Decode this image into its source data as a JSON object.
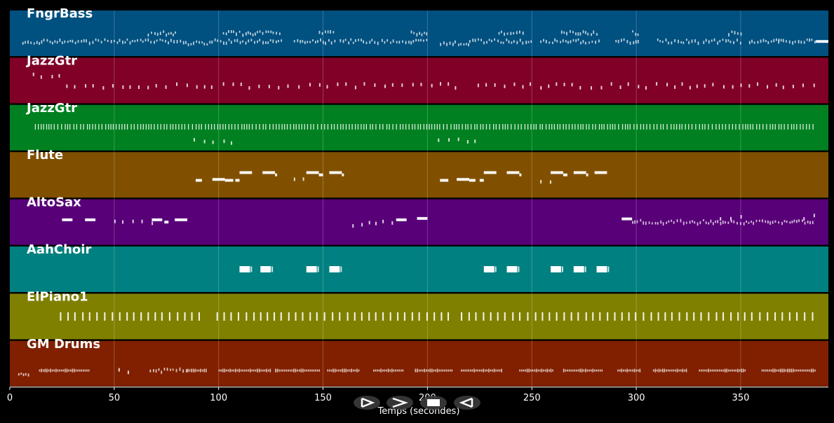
{
  "chart_data": {
    "type": "piano-roll",
    "xlabel": "Temps (secondes)",
    "xlim": [
      0,
      392
    ],
    "xticks": [
      0,
      50,
      100,
      150,
      200,
      250,
      300,
      350
    ],
    "grid": true,
    "tracks": [
      {
        "name": "FngrBass",
        "color": "#005080",
        "notes": [
          {
            "start": 6,
            "end": 16,
            "pitch": 0.28,
            "style": "dense"
          },
          {
            "start": 16,
            "end": 84,
            "pitch": 0.32,
            "style": "dense"
          },
          {
            "start": 66,
            "end": 80,
            "pitch": 0.5,
            "style": "dense"
          },
          {
            "start": 84,
            "end": 97,
            "pitch": 0.28,
            "style": "dense"
          },
          {
            "start": 98,
            "end": 130,
            "pitch": 0.32,
            "style": "dense"
          },
          {
            "start": 102,
            "end": 130,
            "pitch": 0.5,
            "style": "dense"
          },
          {
            "start": 136,
            "end": 156,
            "pitch": 0.32,
            "style": "dense"
          },
          {
            "start": 148,
            "end": 156,
            "pitch": 0.5,
            "style": "dense"
          },
          {
            "start": 158,
            "end": 176,
            "pitch": 0.32,
            "style": "dense"
          },
          {
            "start": 178,
            "end": 200,
            "pitch": 0.32,
            "style": "dense"
          },
          {
            "start": 192,
            "end": 200,
            "pitch": 0.5,
            "style": "dense"
          },
          {
            "start": 206,
            "end": 220,
            "pitch": 0.28,
            "style": "dense"
          },
          {
            "start": 220,
            "end": 250,
            "pitch": 0.32,
            "style": "dense"
          },
          {
            "start": 234,
            "end": 246,
            "pitch": 0.5,
            "style": "dense"
          },
          {
            "start": 254,
            "end": 282,
            "pitch": 0.32,
            "style": "dense"
          },
          {
            "start": 264,
            "end": 282,
            "pitch": 0.5,
            "style": "dense"
          },
          {
            "start": 290,
            "end": 302,
            "pitch": 0.32,
            "style": "dense"
          },
          {
            "start": 298,
            "end": 302,
            "pitch": 0.5,
            "style": "dense"
          },
          {
            "start": 310,
            "end": 330,
            "pitch": 0.32,
            "style": "dense"
          },
          {
            "start": 332,
            "end": 350,
            "pitch": 0.32,
            "style": "dense"
          },
          {
            "start": 344,
            "end": 350,
            "pitch": 0.5,
            "style": "dense"
          },
          {
            "start": 354,
            "end": 368,
            "pitch": 0.32,
            "style": "dense"
          },
          {
            "start": 368,
            "end": 386,
            "pitch": 0.32,
            "style": "dense"
          },
          {
            "start": 386,
            "end": 392,
            "pitch": 0.32,
            "style": "solid"
          }
        ]
      },
      {
        "name": "JazzGtr",
        "color": "#800028",
        "notes": [
          {
            "start": 11,
            "end": 27,
            "pitch": 0.6,
            "style": "sparse"
          },
          {
            "start": 27,
            "end": 100,
            "pitch": 0.38,
            "style": "sparse"
          },
          {
            "start": 102,
            "end": 216,
            "pitch": 0.38,
            "style": "sparse"
          },
          {
            "start": 224,
            "end": 386,
            "pitch": 0.38,
            "style": "sparse"
          }
        ]
      },
      {
        "name": "JazzGtr",
        "color": "#008020",
        "notes": [
          {
            "start": 12,
            "end": 385,
            "pitch": 0.52,
            "style": "comb"
          },
          {
            "start": 88,
            "end": 106,
            "pitch": 0.2,
            "style": "sparse"
          },
          {
            "start": 205,
            "end": 224,
            "pitch": 0.2,
            "style": "sparse"
          }
        ]
      },
      {
        "name": "Flute",
        "color": "#805000",
        "notes": [
          {
            "start": 89,
            "end": 92,
            "pitch": 0.38,
            "style": "solid"
          },
          {
            "start": 97,
            "end": 103,
            "pitch": 0.4,
            "style": "solid"
          },
          {
            "start": 103,
            "end": 107,
            "pitch": 0.38,
            "style": "solid"
          },
          {
            "start": 108,
            "end": 110,
            "pitch": 0.38,
            "style": "solid"
          },
          {
            "start": 110,
            "end": 116,
            "pitch": 0.55,
            "style": "solid"
          },
          {
            "start": 121,
            "end": 127,
            "pitch": 0.55,
            "style": "solid"
          },
          {
            "start": 127,
            "end": 128,
            "pitch": 0.5,
            "style": "solid"
          },
          {
            "start": 136,
            "end": 142,
            "pitch": 0.38,
            "style": "sparse"
          },
          {
            "start": 142,
            "end": 148,
            "pitch": 0.55,
            "style": "solid"
          },
          {
            "start": 148,
            "end": 150,
            "pitch": 0.5,
            "style": "solid"
          },
          {
            "start": 153,
            "end": 159,
            "pitch": 0.55,
            "style": "solid"
          },
          {
            "start": 159,
            "end": 160,
            "pitch": 0.5,
            "style": "solid"
          },
          {
            "start": 206,
            "end": 210,
            "pitch": 0.38,
            "style": "solid"
          },
          {
            "start": 214,
            "end": 220,
            "pitch": 0.4,
            "style": "solid"
          },
          {
            "start": 220,
            "end": 223,
            "pitch": 0.38,
            "style": "solid"
          },
          {
            "start": 225,
            "end": 227,
            "pitch": 0.38,
            "style": "solid"
          },
          {
            "start": 227,
            "end": 233,
            "pitch": 0.55,
            "style": "solid"
          },
          {
            "start": 238,
            "end": 244,
            "pitch": 0.55,
            "style": "solid"
          },
          {
            "start": 244,
            "end": 245,
            "pitch": 0.5,
            "style": "solid"
          },
          {
            "start": 254,
            "end": 259,
            "pitch": 0.38,
            "style": "sparse"
          },
          {
            "start": 259,
            "end": 265,
            "pitch": 0.55,
            "style": "solid"
          },
          {
            "start": 265,
            "end": 267,
            "pitch": 0.5,
            "style": "solid"
          },
          {
            "start": 270,
            "end": 276,
            "pitch": 0.55,
            "style": "solid"
          },
          {
            "start": 276,
            "end": 277,
            "pitch": 0.5,
            "style": "solid"
          },
          {
            "start": 280,
            "end": 286,
            "pitch": 0.55,
            "style": "solid"
          }
        ]
      },
      {
        "name": "AltoSax",
        "color": "#580078",
        "notes": [
          {
            "start": 25,
            "end": 30,
            "pitch": 0.55,
            "style": "solid"
          },
          {
            "start": 36,
            "end": 41,
            "pitch": 0.55,
            "style": "solid"
          },
          {
            "start": 50,
            "end": 60,
            "pitch": 0.5,
            "style": "sparse"
          },
          {
            "start": 63,
            "end": 68,
            "pitch": 0.5,
            "style": "sparse"
          },
          {
            "start": 68,
            "end": 73,
            "pitch": 0.55,
            "style": "solid"
          },
          {
            "start": 74,
            "end": 76,
            "pitch": 0.5,
            "style": "solid"
          },
          {
            "start": 79,
            "end": 84,
            "pitch": 0.55,
            "style": "solid"
          },
          {
            "start": 84,
            "end": 85,
            "pitch": 0.55,
            "style": "solid"
          },
          {
            "start": 164,
            "end": 172,
            "pitch": 0.45,
            "style": "sparse"
          },
          {
            "start": 175,
            "end": 185,
            "pitch": 0.5,
            "style": "sparse"
          },
          {
            "start": 185,
            "end": 190,
            "pitch": 0.55,
            "style": "solid"
          },
          {
            "start": 195,
            "end": 200,
            "pitch": 0.58,
            "style": "solid"
          },
          {
            "start": 293,
            "end": 298,
            "pitch": 0.57,
            "style": "solid"
          },
          {
            "start": 298,
            "end": 385,
            "pitch": 0.5,
            "style": "dense"
          },
          {
            "start": 340,
            "end": 350,
            "pitch": 0.6,
            "style": "sparse"
          },
          {
            "start": 380,
            "end": 385,
            "pitch": 0.6,
            "style": "sparse"
          }
        ]
      },
      {
        "name": "AahChoir",
        "color": "#008080",
        "notes": [
          {
            "start": 110,
            "end": 115,
            "pitch": 0.5,
            "style": "block"
          },
          {
            "start": 120,
            "end": 125,
            "pitch": 0.5,
            "style": "block"
          },
          {
            "start": 142,
            "end": 147,
            "pitch": 0.5,
            "style": "block"
          },
          {
            "start": 153,
            "end": 158,
            "pitch": 0.5,
            "style": "block"
          },
          {
            "start": 227,
            "end": 232,
            "pitch": 0.5,
            "style": "block"
          },
          {
            "start": 238,
            "end": 243,
            "pitch": 0.5,
            "style": "block"
          },
          {
            "start": 259,
            "end": 264,
            "pitch": 0.5,
            "style": "block"
          },
          {
            "start": 270,
            "end": 275,
            "pitch": 0.5,
            "style": "block"
          },
          {
            "start": 281,
            "end": 286,
            "pitch": 0.5,
            "style": "block"
          }
        ]
      },
      {
        "name": "ElPiano1",
        "color": "#808000",
        "notes": [
          {
            "start": 24,
            "end": 93,
            "pitch": 0.5,
            "style": "tall"
          },
          {
            "start": 99,
            "end": 210,
            "pitch": 0.5,
            "style": "tall"
          },
          {
            "start": 216,
            "end": 387,
            "pitch": 0.5,
            "style": "tall"
          }
        ]
      },
      {
        "name": "GM Drums",
        "color": "#802000",
        "notes": [
          {
            "start": 4,
            "end": 9,
            "pitch": 0.28,
            "style": "dense"
          },
          {
            "start": 14,
            "end": 38,
            "pitch": 0.35,
            "style": "drumhits"
          },
          {
            "start": 52,
            "end": 57,
            "pitch": 0.35,
            "style": "sparse"
          },
          {
            "start": 67,
            "end": 85,
            "pitch": 0.35,
            "style": "dense"
          },
          {
            "start": 85,
            "end": 94,
            "pitch": 0.35,
            "style": "drumhits"
          },
          {
            "start": 100,
            "end": 125,
            "pitch": 0.35,
            "style": "drumhits"
          },
          {
            "start": 127,
            "end": 148,
            "pitch": 0.35,
            "style": "drumhits"
          },
          {
            "start": 152,
            "end": 167,
            "pitch": 0.35,
            "style": "drumhits"
          },
          {
            "start": 174,
            "end": 188,
            "pitch": 0.35,
            "style": "drumhits"
          },
          {
            "start": 194,
            "end": 212,
            "pitch": 0.35,
            "style": "drumhits"
          },
          {
            "start": 216,
            "end": 236,
            "pitch": 0.35,
            "style": "drumhits"
          },
          {
            "start": 244,
            "end": 260,
            "pitch": 0.35,
            "style": "drumhits"
          },
          {
            "start": 265,
            "end": 284,
            "pitch": 0.35,
            "style": "drumhits"
          },
          {
            "start": 291,
            "end": 302,
            "pitch": 0.35,
            "style": "drumhits"
          },
          {
            "start": 308,
            "end": 324,
            "pitch": 0.35,
            "style": "drumhits"
          },
          {
            "start": 330,
            "end": 352,
            "pitch": 0.35,
            "style": "drumhits"
          },
          {
            "start": 360,
            "end": 386,
            "pitch": 0.35,
            "style": "drumhits"
          }
        ]
      }
    ]
  },
  "navigation": {
    "buttons": [
      {
        "name": "play-icon",
        "glyph": "play"
      },
      {
        "name": "forward-icon",
        "glyph": "forward"
      },
      {
        "name": "stop-icon",
        "glyph": "stop"
      },
      {
        "name": "rewind-icon",
        "glyph": "rewind"
      }
    ]
  }
}
